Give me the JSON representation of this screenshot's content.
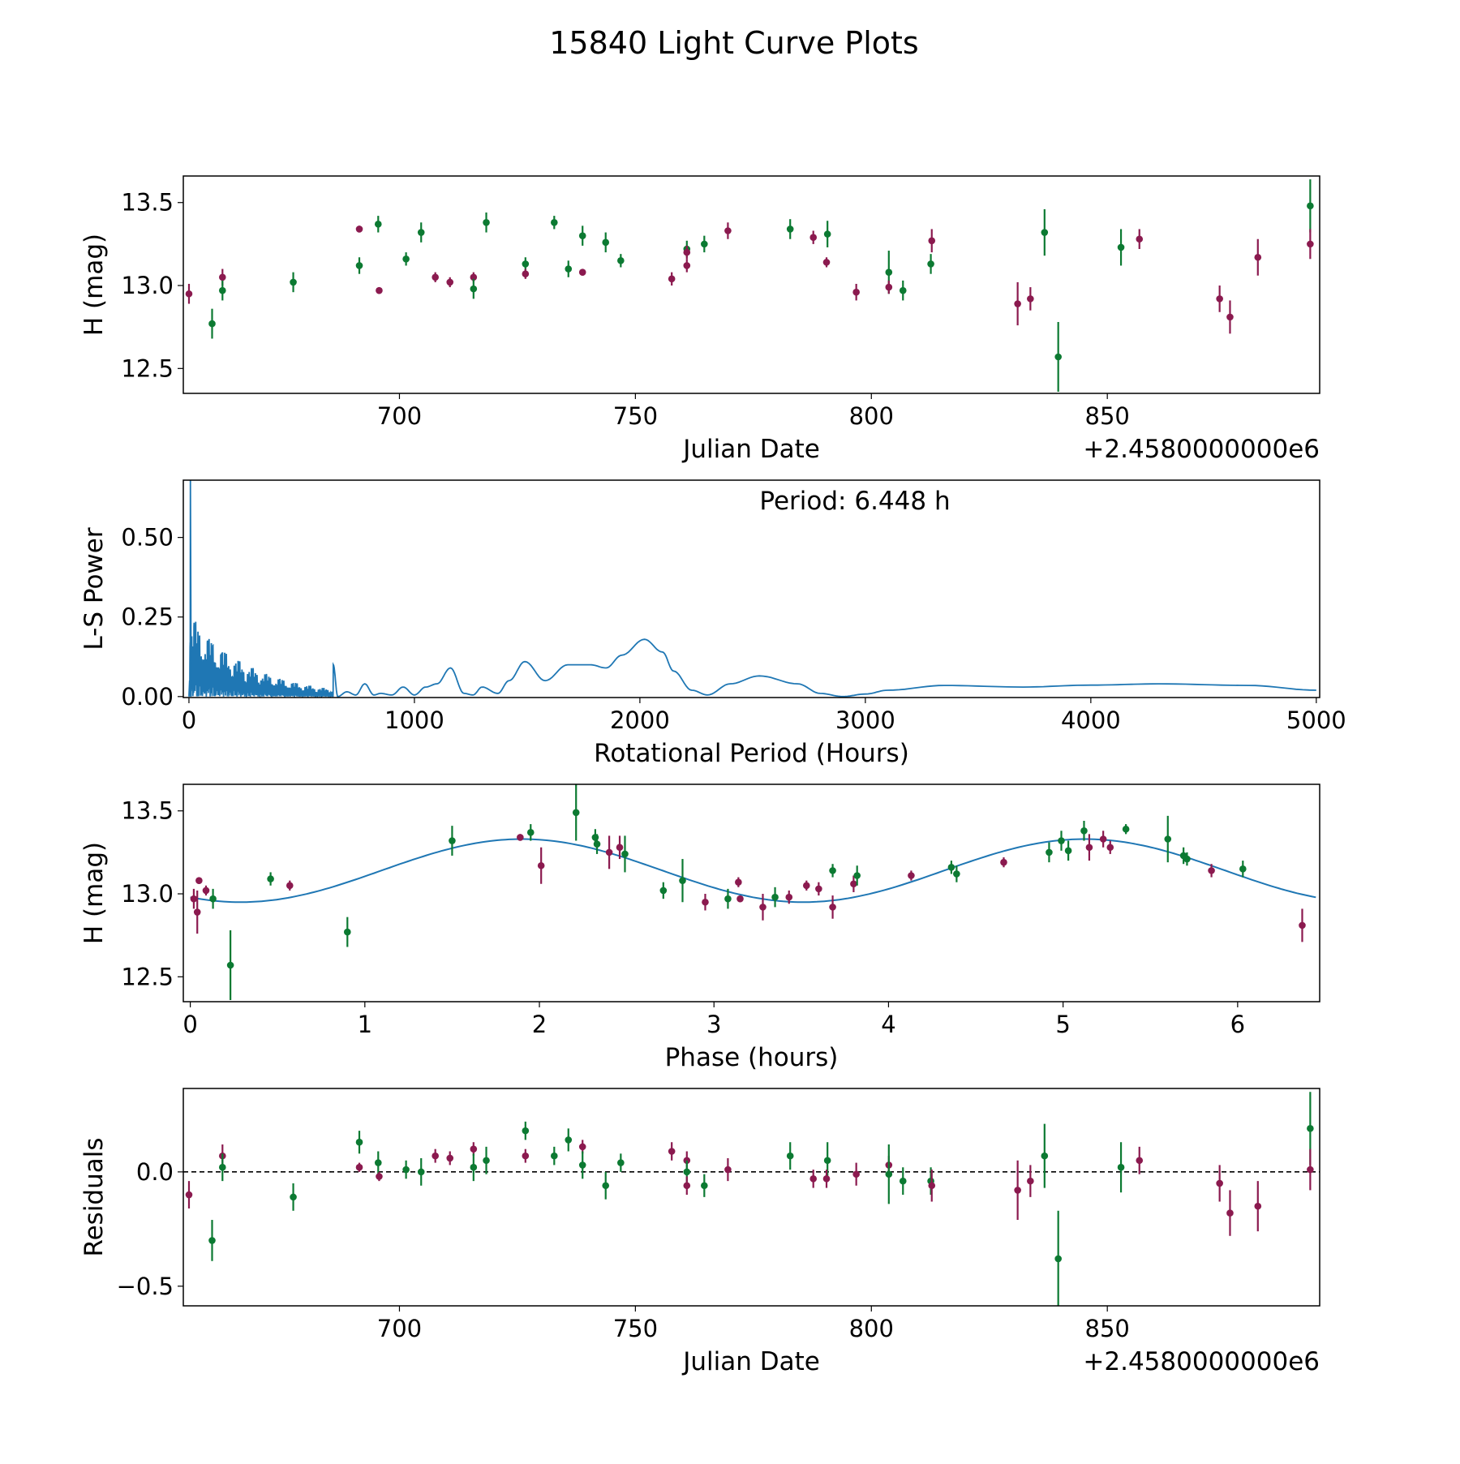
{
  "title": "15840 Light Curve Plots",
  "colors": {
    "series_a": "#8b1a4f",
    "series_b": "#0c7a32",
    "curve": "#1f77b4"
  },
  "chart_data": [
    {
      "id": "lightcurve",
      "type": "scatter",
      "xlabel": "Julian Date",
      "ylabel": "H (mag)",
      "offset_text": "+2.4580000000e6",
      "xlim": [
        654.2,
        895.0
      ],
      "ylim": [
        12.35,
        13.66
      ],
      "xticks": [
        700,
        750,
        800,
        850
      ],
      "xtick_labels": [
        "700",
        "750",
        "800",
        "850"
      ],
      "yticks": [
        12.5,
        13.0,
        13.5
      ],
      "ytick_labels": [
        "12.5",
        "13.0",
        "13.5"
      ],
      "points_format": "[x, y, err, group(0=purple,1=green)]",
      "points": [
        [
          655.4,
          12.95,
          0.06,
          0
        ],
        [
          660.3,
          12.77,
          0.09,
          1
        ],
        [
          662.5,
          13.05,
          0.05,
          0
        ],
        [
          662.5,
          12.97,
          0.06,
          1
        ],
        [
          677.5,
          13.02,
          0.06,
          1
        ],
        [
          691.5,
          13.12,
          0.05,
          1
        ],
        [
          691.5,
          13.34,
          0.02,
          0
        ],
        [
          695.5,
          13.37,
          0.05,
          1
        ],
        [
          695.7,
          12.97,
          0.02,
          0
        ],
        [
          701.4,
          13.16,
          0.04,
          1
        ],
        [
          704.6,
          13.32,
          0.06,
          1
        ],
        [
          707.6,
          13.05,
          0.03,
          0
        ],
        [
          710.7,
          13.02,
          0.03,
          0
        ],
        [
          715.7,
          13.05,
          0.03,
          0
        ],
        [
          715.7,
          12.98,
          0.06,
          1
        ],
        [
          718.4,
          13.38,
          0.06,
          1
        ],
        [
          726.7,
          13.13,
          0.04,
          1
        ],
        [
          726.7,
          13.07,
          0.03,
          0
        ],
        [
          732.8,
          13.38,
          0.04,
          1
        ],
        [
          735.8,
          13.1,
          0.05,
          1
        ],
        [
          738.8,
          13.3,
          0.06,
          1
        ],
        [
          738.8,
          13.08,
          0.02,
          0
        ],
        [
          743.7,
          13.26,
          0.06,
          1
        ],
        [
          746.9,
          13.15,
          0.04,
          1
        ],
        [
          757.7,
          13.04,
          0.04,
          0
        ],
        [
          760.9,
          13.22,
          0.05,
          1
        ],
        [
          760.9,
          13.2,
          0.04,
          0
        ],
        [
          760.9,
          13.12,
          0.04,
          0
        ],
        [
          764.6,
          13.25,
          0.05,
          1
        ],
        [
          769.6,
          13.33,
          0.05,
          0
        ],
        [
          782.8,
          13.34,
          0.06,
          1
        ],
        [
          787.7,
          13.29,
          0.04,
          0
        ],
        [
          790.7,
          13.31,
          0.08,
          1
        ],
        [
          790.5,
          13.14,
          0.03,
          0
        ],
        [
          796.8,
          12.96,
          0.05,
          0
        ],
        [
          803.7,
          13.08,
          0.13,
          1
        ],
        [
          803.7,
          12.99,
          0.04,
          0
        ],
        [
          806.7,
          12.97,
          0.06,
          1
        ],
        [
          812.6,
          13.13,
          0.06,
          1
        ],
        [
          812.8,
          13.27,
          0.07,
          0
        ],
        [
          831.0,
          12.89,
          0.13,
          0
        ],
        [
          833.7,
          12.92,
          0.07,
          0
        ],
        [
          836.7,
          13.32,
          0.14,
          1
        ],
        [
          839.6,
          12.57,
          0.21,
          1
        ],
        [
          852.9,
          13.23,
          0.11,
          1
        ],
        [
          856.8,
          13.28,
          0.06,
          0
        ],
        [
          873.8,
          12.92,
          0.08,
          0
        ],
        [
          876.0,
          12.81,
          0.1,
          0
        ],
        [
          881.9,
          13.17,
          0.11,
          0
        ],
        [
          893.0,
          13.48,
          0.16,
          1
        ],
        [
          893.0,
          13.25,
          0.09,
          0
        ]
      ]
    },
    {
      "id": "periodogram",
      "type": "line",
      "xlabel": "Rotational Period (Hours)",
      "ylabel": "L-S Power",
      "annotation": "Period: 6.448 h",
      "best_period_hours": 6.448,
      "peak_power": 0.68,
      "xlim": [
        -25,
        5015
      ],
      "ylim": [
        -0.003,
        0.68
      ],
      "xticks": [
        0,
        1000,
        2000,
        3000,
        4000,
        5000
      ],
      "xtick_labels": [
        "0",
        "1000",
        "2000",
        "3000",
        "4000",
        "5000"
      ],
      "yticks": [
        0.0,
        0.25,
        0.5
      ],
      "ytick_labels": [
        "0.00",
        "0.25",
        "0.50"
      ],
      "short_period_max_power": 0.28,
      "long_period_curve": [
        [
          640,
          0.1
        ],
        [
          660,
          0.0
        ],
        [
          700,
          0.015
        ],
        [
          740,
          0.005
        ],
        [
          780,
          0.04
        ],
        [
          820,
          0.005
        ],
        [
          850,
          0.01
        ],
        [
          900,
          0.005
        ],
        [
          950,
          0.03
        ],
        [
          1000,
          0.005
        ],
        [
          1050,
          0.03
        ],
        [
          1100,
          0.04
        ],
        [
          1160,
          0.09
        ],
        [
          1220,
          0.01
        ],
        [
          1260,
          0.005
        ],
        [
          1300,
          0.03
        ],
        [
          1370,
          0.01
        ],
        [
          1420,
          0.05
        ],
        [
          1490,
          0.11
        ],
        [
          1580,
          0.05
        ],
        [
          1680,
          0.1
        ],
        [
          1780,
          0.1
        ],
        [
          1850,
          0.09
        ],
        [
          1920,
          0.13
        ],
        [
          2020,
          0.18
        ],
        [
          2100,
          0.14
        ],
        [
          2150,
          0.08
        ],
        [
          2230,
          0.02
        ],
        [
          2300,
          0.005
        ],
        [
          2400,
          0.04
        ],
        [
          2530,
          0.065
        ],
        [
          2700,
          0.04
        ],
        [
          2800,
          0.01
        ],
        [
          2900,
          0.0
        ],
        [
          3000,
          0.008
        ],
        [
          3100,
          0.02
        ],
        [
          3350,
          0.035
        ],
        [
          3700,
          0.03
        ],
        [
          4000,
          0.036
        ],
        [
          4300,
          0.04
        ],
        [
          4700,
          0.035
        ],
        [
          5000,
          0.02
        ]
      ]
    },
    {
      "id": "phased",
      "type": "scatter",
      "xlabel": "Phase (hours)",
      "ylabel": "H (mag)",
      "xlim": [
        -0.04,
        6.47
      ],
      "ylim": [
        12.35,
        13.66
      ],
      "xticks": [
        0,
        1,
        2,
        3,
        4,
        5,
        6
      ],
      "xtick_labels": [
        "0",
        "1",
        "2",
        "3",
        "4",
        "5",
        "6"
      ],
      "yticks": [
        12.5,
        13.0,
        13.5
      ],
      "ytick_labels": [
        "12.5",
        "13.0",
        "13.5"
      ],
      "fit": {
        "mean": 13.14,
        "amplitude": 0.19,
        "harmonic_period_hours": 3.224,
        "peak_phase": 1.9,
        "range": [
          0,
          6.448
        ]
      },
      "points": [
        [
          0.02,
          12.97,
          0.06,
          0
        ],
        [
          0.04,
          12.89,
          0.13,
          0
        ],
        [
          0.05,
          13.08,
          0.02,
          0
        ],
        [
          0.09,
          13.02,
          0.03,
          0
        ],
        [
          0.13,
          12.97,
          0.06,
          1
        ],
        [
          0.23,
          12.57,
          0.21,
          1
        ],
        [
          0.46,
          13.09,
          0.04,
          1
        ],
        [
          0.57,
          13.05,
          0.03,
          0
        ],
        [
          0.9,
          12.77,
          0.09,
          1
        ],
        [
          1.5,
          13.32,
          0.09,
          1
        ],
        [
          1.89,
          13.34,
          0.02,
          0
        ],
        [
          1.95,
          13.37,
          0.05,
          1
        ],
        [
          2.01,
          13.17,
          0.11,
          0
        ],
        [
          2.21,
          13.49,
          0.17,
          1
        ],
        [
          2.32,
          13.34,
          0.05,
          1
        ],
        [
          2.33,
          13.3,
          0.06,
          1
        ],
        [
          2.4,
          13.25,
          0.1,
          0
        ],
        [
          2.46,
          13.28,
          0.07,
          0
        ],
        [
          2.49,
          13.24,
          0.11,
          1
        ],
        [
          2.71,
          13.02,
          0.05,
          1
        ],
        [
          2.82,
          13.08,
          0.13,
          1
        ],
        [
          2.95,
          12.95,
          0.05,
          0
        ],
        [
          3.08,
          12.97,
          0.06,
          1
        ],
        [
          3.14,
          13.07,
          0.03,
          0
        ],
        [
          3.15,
          12.97,
          0.02,
          0
        ],
        [
          3.28,
          12.92,
          0.08,
          0
        ],
        [
          3.35,
          12.98,
          0.06,
          1
        ],
        [
          3.43,
          12.98,
          0.04,
          0
        ],
        [
          3.53,
          13.05,
          0.03,
          0
        ],
        [
          3.6,
          13.03,
          0.04,
          0
        ],
        [
          3.68,
          12.92,
          0.07,
          0
        ],
        [
          3.68,
          13.14,
          0.04,
          1
        ],
        [
          3.8,
          13.06,
          0.05,
          0
        ],
        [
          3.82,
          13.11,
          0.06,
          1
        ],
        [
          4.13,
          13.11,
          0.03,
          0
        ],
        [
          4.36,
          13.16,
          0.04,
          1
        ],
        [
          4.39,
          13.12,
          0.05,
          1
        ],
        [
          4.66,
          13.19,
          0.03,
          0
        ],
        [
          4.92,
          13.25,
          0.06,
          1
        ],
        [
          4.99,
          13.32,
          0.06,
          1
        ],
        [
          5.03,
          13.26,
          0.06,
          1
        ],
        [
          5.12,
          13.38,
          0.06,
          1
        ],
        [
          5.15,
          13.28,
          0.08,
          0
        ],
        [
          5.23,
          13.33,
          0.05,
          0
        ],
        [
          5.27,
          13.28,
          0.04,
          0
        ],
        [
          5.36,
          13.39,
          0.03,
          1
        ],
        [
          5.6,
          13.33,
          0.14,
          1
        ],
        [
          5.69,
          13.23,
          0.05,
          1
        ],
        [
          5.71,
          13.21,
          0.04,
          1
        ],
        [
          5.85,
          13.14,
          0.04,
          0
        ],
        [
          6.03,
          13.15,
          0.05,
          1
        ],
        [
          6.37,
          12.81,
          0.1,
          0
        ]
      ]
    },
    {
      "id": "residuals",
      "type": "scatter",
      "xlabel": "Julian Date",
      "ylabel": "Residuals",
      "offset_text": "+2.4580000000e6",
      "xlim": [
        654.2,
        895.0
      ],
      "ylim": [
        -0.586,
        0.365
      ],
      "zero_line": 0.0,
      "xticks": [
        700,
        750,
        800,
        850
      ],
      "xtick_labels": [
        "700",
        "750",
        "800",
        "850"
      ],
      "yticks": [
        -0.5,
        0.0
      ],
      "ytick_labels": [
        "−0.5",
        "0.0"
      ],
      "points": [
        [
          655.4,
          -0.1,
          0.06,
          0
        ],
        [
          660.3,
          -0.3,
          0.09,
          1
        ],
        [
          662.5,
          0.07,
          0.05,
          0
        ],
        [
          662.5,
          0.02,
          0.06,
          1
        ],
        [
          677.5,
          -0.11,
          0.06,
          1
        ],
        [
          691.5,
          0.13,
          0.05,
          1
        ],
        [
          691.5,
          0.02,
          0.02,
          0
        ],
        [
          695.5,
          0.04,
          0.05,
          1
        ],
        [
          695.7,
          -0.02,
          0.02,
          0
        ],
        [
          701.4,
          0.01,
          0.04,
          1
        ],
        [
          704.6,
          0.0,
          0.06,
          1
        ],
        [
          707.6,
          0.07,
          0.03,
          0
        ],
        [
          710.7,
          0.06,
          0.03,
          0
        ],
        [
          715.7,
          0.1,
          0.03,
          0
        ],
        [
          715.7,
          0.02,
          0.06,
          1
        ],
        [
          718.4,
          0.05,
          0.06,
          1
        ],
        [
          726.7,
          0.18,
          0.04,
          1
        ],
        [
          726.7,
          0.07,
          0.03,
          0
        ],
        [
          732.8,
          0.07,
          0.04,
          1
        ],
        [
          735.8,
          0.14,
          0.05,
          1
        ],
        [
          738.8,
          0.11,
          0.03,
          0
        ],
        [
          738.8,
          0.03,
          0.06,
          1
        ],
        [
          743.7,
          -0.06,
          0.06,
          1
        ],
        [
          746.9,
          0.04,
          0.04,
          1
        ],
        [
          757.7,
          0.09,
          0.04,
          0
        ],
        [
          760.9,
          0.05,
          0.04,
          0
        ],
        [
          760.9,
          0.0,
          0.05,
          1
        ],
        [
          760.9,
          -0.06,
          0.04,
          0
        ],
        [
          764.6,
          -0.06,
          0.05,
          1
        ],
        [
          769.6,
          0.01,
          0.05,
          0
        ],
        [
          782.8,
          0.07,
          0.06,
          1
        ],
        [
          787.7,
          -0.03,
          0.04,
          0
        ],
        [
          790.7,
          0.05,
          0.08,
          1
        ],
        [
          790.5,
          -0.03,
          0.04,
          0
        ],
        [
          796.8,
          -0.01,
          0.05,
          0
        ],
        [
          803.7,
          0.03,
          0.04,
          0
        ],
        [
          803.7,
          -0.01,
          0.13,
          1
        ],
        [
          806.7,
          -0.04,
          0.06,
          1
        ],
        [
          812.6,
          -0.04,
          0.06,
          1
        ],
        [
          812.8,
          -0.06,
          0.07,
          0
        ],
        [
          831.0,
          -0.08,
          0.13,
          0
        ],
        [
          833.7,
          -0.04,
          0.07,
          0
        ],
        [
          836.7,
          0.07,
          0.14,
          1
        ],
        [
          839.6,
          -0.38,
          0.21,
          1
        ],
        [
          852.9,
          0.02,
          0.11,
          1
        ],
        [
          856.8,
          0.05,
          0.06,
          0
        ],
        [
          873.8,
          -0.05,
          0.08,
          0
        ],
        [
          876.0,
          -0.18,
          0.1,
          0
        ],
        [
          881.9,
          -0.15,
          0.11,
          0
        ],
        [
          893.0,
          0.19,
          0.16,
          1
        ],
        [
          893.0,
          0.01,
          0.09,
          0
        ]
      ]
    }
  ]
}
